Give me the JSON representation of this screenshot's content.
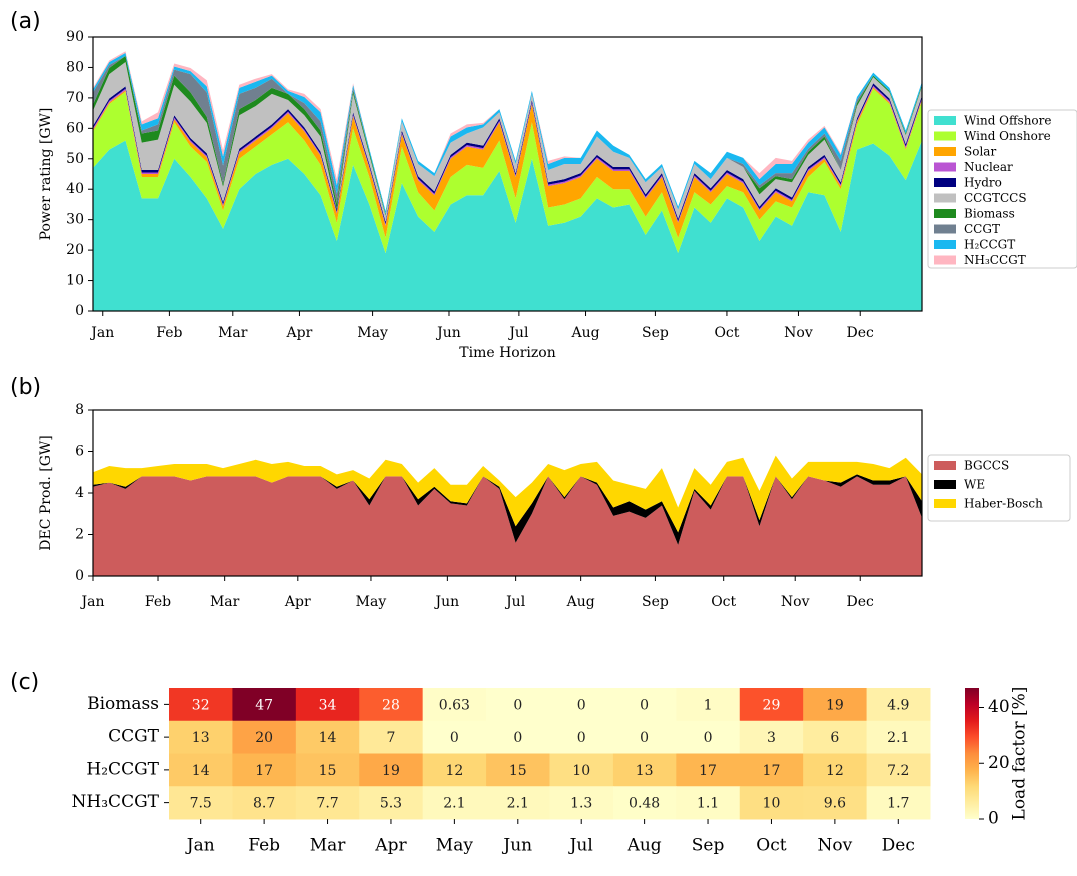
{
  "chart_data": [
    {
      "type": "area",
      "stacked": true,
      "panel": "(a)",
      "y_label": "Power rating [GW]",
      "x_label": "Time Horizon",
      "x": [
        0,
        1,
        2,
        3,
        4,
        5,
        6,
        7,
        8,
        9,
        10,
        11,
        12,
        13,
        14,
        15,
        16,
        17,
        18,
        19,
        20,
        21,
        22,
        23,
        24,
        25,
        26,
        27,
        28,
        29,
        30,
        31,
        32,
        33,
        34,
        35,
        36,
        37,
        38,
        39,
        40,
        41,
        42,
        43,
        44,
        45,
        46,
        47,
        48,
        49,
        50,
        51
      ],
      "xlim": [
        0,
        51
      ],
      "xticks": [
        {
          "value": 0.6,
          "label": "Jan"
        },
        {
          "value": 4.7,
          "label": "Feb"
        },
        {
          "value": 8.6,
          "label": "Mar"
        },
        {
          "value": 12.7,
          "label": "Apr"
        },
        {
          "value": 17.2,
          "label": "May"
        },
        {
          "value": 21.9,
          "label": "Jun"
        },
        {
          "value": 26.2,
          "label": "Jul"
        },
        {
          "value": 30.3,
          "label": "Aug"
        },
        {
          "value": 34.6,
          "label": "Sep"
        },
        {
          "value": 39.0,
          "label": "Oct"
        },
        {
          "value": 43.4,
          "label": "Nov"
        },
        {
          "value": 47.2,
          "label": "Dec"
        }
      ],
      "ylim": [
        0,
        90
      ],
      "yticks": [
        0,
        10,
        20,
        30,
        40,
        50,
        60,
        70,
        80,
        90
      ],
      "legend": "right",
      "series": [
        {
          "name": "Wind Offshore",
          "color": "#40e0d0",
          "values": [
            47,
            53,
            56,
            37,
            37,
            50,
            44,
            37,
            27,
            40,
            45,
            48,
            50,
            45,
            38,
            23,
            48,
            35,
            19,
            42,
            31,
            26,
            35,
            38,
            38,
            46,
            29,
            50,
            28,
            29,
            31,
            37,
            34,
            35,
            25,
            33,
            19,
            34,
            29,
            37,
            34,
            23,
            31,
            28,
            39,
            38,
            26,
            53,
            55,
            51,
            43,
            56
          ]
        },
        {
          "name": "Wind Onshore",
          "color": "#adff2f",
          "values": [
            12,
            15,
            16,
            7,
            7,
            12,
            10,
            12,
            6,
            10,
            9,
            10,
            12,
            11,
            10,
            6,
            12,
            9,
            5,
            12,
            8,
            7,
            9,
            10,
            9,
            10,
            8,
            12,
            6,
            6,
            6,
            7,
            6,
            5,
            6,
            6,
            5,
            5,
            6,
            4,
            5,
            7,
            5,
            6,
            5,
            11,
            14,
            8,
            18,
            17,
            10,
            13
          ]
        },
        {
          "name": "Solar",
          "color": "#ffa500",
          "values": [
            0.5,
            0.5,
            0.5,
            1,
            1,
            1,
            1.5,
            1.5,
            1.5,
            2,
            2,
            2,
            3,
            3,
            3,
            3,
            4,
            3,
            4,
            4,
            4,
            5,
            6,
            6,
            6,
            6,
            7,
            6,
            7,
            7,
            7,
            6,
            6,
            6,
            6,
            5,
            5,
            5,
            4,
            4,
            3,
            3,
            3,
            2,
            2,
            1,
            1,
            1,
            0.5,
            0.5,
            0.5,
            0.5
          ]
        },
        {
          "name": "Nuclear",
          "color": "#ba55d3",
          "values": [
            0.5,
            0.5,
            0.5,
            0.5,
            0.5,
            0.5,
            0.5,
            0.5,
            0.5,
            0.5,
            0.5,
            0.5,
            0.5,
            0.5,
            0.5,
            0.5,
            0.5,
            0.5,
            0.5,
            0.5,
            0.5,
            0.5,
            0.5,
            0.5,
            0.5,
            0.5,
            0.5,
            0.5,
            0.5,
            0.5,
            0.5,
            0.5,
            0.5,
            0.5,
            0.5,
            0.5,
            0.5,
            0.5,
            0.5,
            0.5,
            0.5,
            0.5,
            0.5,
            0.5,
            0.5,
            0.5,
            0.5,
            0.5,
            0.5,
            0.5,
            0.5,
            0.5
          ]
        },
        {
          "name": "Hydro",
          "color": "#000080",
          "values": [
            0.8,
            0.8,
            0.8,
            0.8,
            0.8,
            0.8,
            0.8,
            0.8,
            0.8,
            0.8,
            0.8,
            0.8,
            0.8,
            0.8,
            0.8,
            0.8,
            0.8,
            0.8,
            0.8,
            0.8,
            0.8,
            0.8,
            0.8,
            0.8,
            0.8,
            0.8,
            0.8,
            0.8,
            0.8,
            0.8,
            0.8,
            0.8,
            0.8,
            0.8,
            0.8,
            0.8,
            0.8,
            0.8,
            0.8,
            0.8,
            0.8,
            0.8,
            0.8,
            0.8,
            0.8,
            0.8,
            0.8,
            0.8,
            0.8,
            0.8,
            0.8,
            0.8
          ]
        },
        {
          "name": "CCGTCCS",
          "color": "#c0c0c0",
          "values": [
            5,
            8,
            8,
            9,
            10,
            10,
            12,
            10,
            5,
            11,
            10,
            10,
            3,
            4,
            5,
            0,
            6,
            3,
            2,
            3,
            4,
            5,
            4,
            3,
            6,
            2,
            3,
            2,
            4,
            5,
            3,
            6,
            5,
            3,
            4,
            2,
            3,
            3,
            3,
            4,
            4,
            4,
            3,
            5,
            4,
            5,
            4,
            4,
            2,
            2,
            3,
            3
          ]
        },
        {
          "name": "Biomass",
          "color": "#1e8a1e",
          "values": [
            2,
            2,
            2,
            3,
            3,
            3,
            3,
            2,
            1,
            2,
            2,
            2,
            2,
            2,
            2,
            2,
            1,
            1,
            0.5,
            0,
            0,
            0,
            0,
            0,
            0,
            0,
            0,
            0,
            0,
            0,
            0,
            0,
            0,
            0,
            0,
            0,
            0,
            0,
            0,
            0,
            0,
            2,
            1,
            1,
            1,
            1,
            0,
            1,
            0.5,
            0.5,
            0.5,
            0.5
          ]
        },
        {
          "name": "CCGT",
          "color": "#708090",
          "values": [
            4,
            1,
            0,
            1,
            2,
            2,
            6,
            8,
            6,
            5,
            4,
            3,
            0,
            2,
            3,
            3,
            1,
            0,
            0,
            0,
            0,
            0,
            0,
            0,
            0,
            0,
            0,
            0,
            0,
            0,
            0,
            0,
            0,
            0,
            0,
            0,
            0,
            0,
            0,
            0,
            1,
            1,
            1,
            2,
            1,
            1,
            3,
            1,
            0,
            0,
            0,
            0
          ]
        },
        {
          "name": "H₂CCGT",
          "color": "#1ab8f0",
          "values": [
            1,
            1,
            1,
            2,
            2,
            1,
            1,
            2,
            3,
            2,
            2,
            1,
            1,
            2,
            3,
            3,
            1,
            1,
            1,
            1,
            1,
            1,
            2,
            2,
            1,
            1,
            1,
            1,
            2,
            2,
            2,
            2,
            2,
            1,
            1,
            1,
            1,
            1,
            2,
            2,
            2,
            2,
            3,
            3,
            2,
            2,
            2,
            1,
            1,
            1,
            1,
            1
          ]
        },
        {
          "name": "NH₃CCGT",
          "color": "#ffb6c1",
          "values": [
            0.5,
            0.5,
            0.5,
            1,
            2,
            1,
            1,
            2,
            2,
            1,
            1,
            0.5,
            0.5,
            1,
            1,
            2,
            0.5,
            0,
            0,
            0,
            0,
            0,
            1,
            1,
            0.5,
            0,
            0,
            0,
            1,
            0.5,
            0,
            0,
            0,
            0,
            0,
            0,
            0,
            0,
            0,
            0,
            0,
            2,
            2,
            1,
            1,
            0.5,
            0.5,
            0,
            0,
            0,
            0,
            0
          ]
        }
      ]
    },
    {
      "type": "area",
      "stacked": true,
      "panel": "(b)",
      "y_label": "DEC Prod. [GW]",
      "x": [
        0,
        1,
        2,
        3,
        4,
        5,
        6,
        7,
        8,
        9,
        10,
        11,
        12,
        13,
        14,
        15,
        16,
        17,
        18,
        19,
        20,
        21,
        22,
        23,
        24,
        25,
        26,
        27,
        28,
        29,
        30,
        31,
        32,
        33,
        34,
        35,
        36,
        37,
        38,
        39,
        40,
        41,
        42,
        43,
        44,
        45,
        46,
        47,
        48,
        49,
        50,
        51
      ],
      "xlim": [
        0,
        51
      ],
      "xticks": [
        {
          "value": 0,
          "label": "Jan"
        },
        {
          "value": 4.0,
          "label": "Feb"
        },
        {
          "value": 8.1,
          "label": "Mar"
        },
        {
          "value": 12.6,
          "label": "Apr"
        },
        {
          "value": 17.1,
          "label": "May"
        },
        {
          "value": 21.8,
          "label": "Jun"
        },
        {
          "value": 26.0,
          "label": "Jul"
        },
        {
          "value": 30.0,
          "label": "Aug"
        },
        {
          "value": 34.6,
          "label": "Sep"
        },
        {
          "value": 38.8,
          "label": "Oct"
        },
        {
          "value": 43.2,
          "label": "Nov"
        },
        {
          "value": 47.2,
          "label": "Dec"
        }
      ],
      "ylim": [
        0,
        8
      ],
      "yticks": [
        0,
        2,
        4,
        6,
        8
      ],
      "legend": "right",
      "series": [
        {
          "name": "BGCCS",
          "color": "#cd5c5c",
          "values": [
            4.3,
            4.5,
            4.2,
            4.8,
            4.8,
            4.8,
            4.6,
            4.8,
            4.8,
            4.8,
            4.8,
            4.5,
            4.8,
            4.8,
            4.8,
            4.2,
            4.6,
            3.4,
            4.8,
            4.8,
            3.4,
            4.2,
            3.5,
            3.4,
            4.8,
            4.2,
            1.6,
            3.0,
            4.8,
            3.7,
            4.8,
            4.4,
            2.9,
            3.1,
            2.8,
            3.4,
            1.5,
            4.1,
            3.2,
            4.8,
            4.8,
            2.4,
            4.8,
            3.7,
            4.8,
            4.6,
            4.3,
            4.8,
            4.4,
            4.4,
            4.8,
            2.8
          ]
        },
        {
          "name": "WE",
          "color": "#000000",
          "values": [
            0.1,
            0,
            0.1,
            0,
            0,
            0,
            0,
            0,
            0,
            0,
            0,
            0,
            0,
            0,
            0,
            0.1,
            0,
            0.3,
            0,
            0,
            0.3,
            0.1,
            0.1,
            0.1,
            0,
            0.1,
            0.8,
            0.5,
            0,
            0.1,
            0,
            0.1,
            0.4,
            0.5,
            0.4,
            0.2,
            0.6,
            0.1,
            0.2,
            0,
            0,
            0.3,
            0,
            0.1,
            0,
            0,
            0.2,
            0.1,
            0.2,
            0.2,
            0,
            0.8
          ]
        },
        {
          "name": "Haber-Bosch",
          "color": "#ffd700",
          "values": [
            0.6,
            0.8,
            0.9,
            0.4,
            0.5,
            0.6,
            0.8,
            0.6,
            0.4,
            0.6,
            0.8,
            0.9,
            0.7,
            0.5,
            0.5,
            0.6,
            0.5,
            1.0,
            0.8,
            0.6,
            0.8,
            0.9,
            0.8,
            0.9,
            0.5,
            0.3,
            1.4,
            1.0,
            0.6,
            1.3,
            0.6,
            1.0,
            1.3,
            0.8,
            1.0,
            1.6,
            1.2,
            1.0,
            1.0,
            0.7,
            0.9,
            1.4,
            1.0,
            0.9,
            0.7,
            0.9,
            1.0,
            0.6,
            0.8,
            0.6,
            0.9,
            1.3
          ]
        }
      ]
    },
    {
      "type": "heatmap",
      "panel": "(c)",
      "rows": [
        "Biomass",
        "CCGT",
        "H₂CCGT",
        "NH₃CCGT"
      ],
      "columns": [
        "Jan",
        "Feb",
        "Mar",
        "Apr",
        "May",
        "Jun",
        "Jul",
        "Aug",
        "Sep",
        "Oct",
        "Nov",
        "Dec"
      ],
      "values": [
        [
          32,
          47,
          34,
          28,
          0.63,
          0,
          0,
          0,
          1,
          29,
          19,
          4.9
        ],
        [
          13,
          20,
          14,
          7,
          0,
          0,
          0,
          0,
          0,
          3,
          6,
          2.1
        ],
        [
          14,
          17,
          15,
          19,
          12,
          15,
          10,
          13,
          17,
          17,
          12,
          7.2
        ],
        [
          7.5,
          8.7,
          7.7,
          5.3,
          2.1,
          2.1,
          1.3,
          0.48,
          1.1,
          10,
          9.6,
          1.7
        ]
      ],
      "zlim": [
        0,
        47
      ],
      "colorbar_label": "Load factor [%]",
      "colorbar_ticks": [
        0,
        20,
        40
      ],
      "colormap": [
        "#ffffcc",
        "#ffeda0",
        "#fed976",
        "#feb24c",
        "#fd8d3c",
        "#fc4e2a",
        "#e31a1c",
        "#bd0026",
        "#800026"
      ]
    }
  ]
}
